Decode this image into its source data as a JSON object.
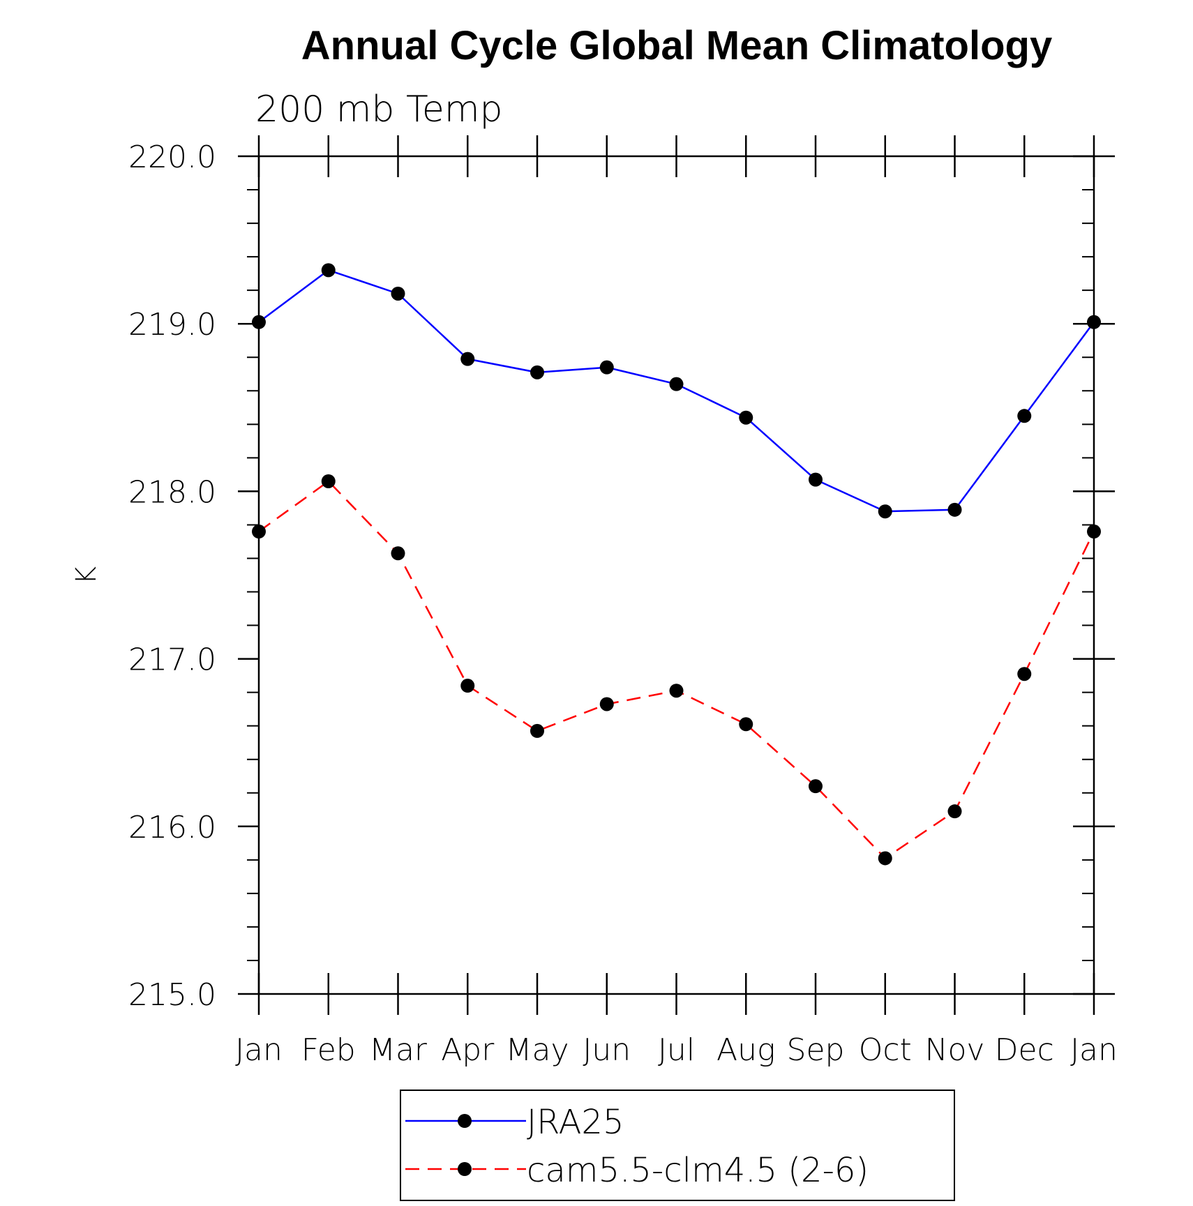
{
  "chart_data": {
    "type": "line",
    "title": "Annual Cycle Global Mean Climatology",
    "subtitle": "200 mb Temp",
    "xlabel": "",
    "ylabel": "K",
    "categories": [
      "Jan",
      "Feb",
      "Mar",
      "Apr",
      "May",
      "Jun",
      "Jul",
      "Aug",
      "Sep",
      "Oct",
      "Nov",
      "Dec",
      "Jan"
    ],
    "ylim": [
      215.0,
      220.0
    ],
    "yticks": [
      "215.0",
      "216.0",
      "217.0",
      "218.0",
      "219.0",
      "220.0"
    ],
    "grid": false,
    "legend_position": "bottom",
    "series": [
      {
        "name": "JRA25",
        "color": "#0000ff",
        "line_style": "solid",
        "marker": "filled-circle",
        "marker_color": "#000000",
        "values": [
          219.01,
          219.32,
          219.18,
          218.79,
          218.71,
          218.74,
          218.64,
          218.44,
          218.07,
          217.88,
          217.89,
          218.45,
          219.01
        ]
      },
      {
        "name": "cam5.5-clm4.5 (2-6)",
        "color": "#ff0000",
        "line_style": "dashed",
        "marker": "filled-circle",
        "marker_color": "#000000",
        "values": [
          217.76,
          218.06,
          217.63,
          216.84,
          216.57,
          216.73,
          216.81,
          216.61,
          216.24,
          215.81,
          216.09,
          216.91,
          217.76
        ]
      }
    ]
  }
}
